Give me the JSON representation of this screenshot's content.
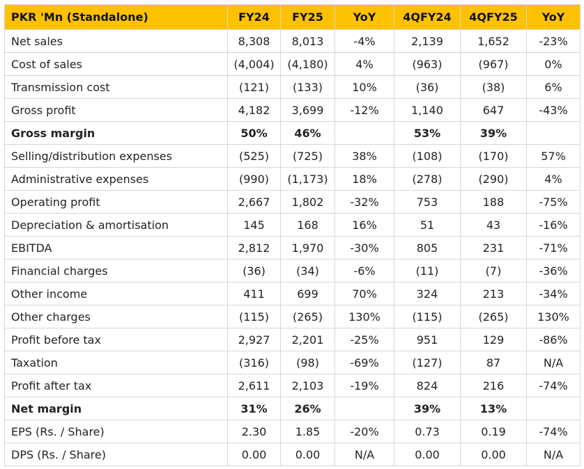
{
  "table": {
    "columns": [
      "PKR 'Mn (Standalone)",
      "FY24",
      "FY25",
      "YoY",
      "4QFY24",
      "4QFY25",
      "YoY"
    ],
    "rows": [
      {
        "label": "Net sales",
        "values": [
          "8,308",
          "8,013",
          "-4%",
          "2,139",
          "1,652",
          "-23%"
        ]
      },
      {
        "label": "Cost of sales",
        "values": [
          "(4,004)",
          "(4,180)",
          "4%",
          "(963)",
          "(967)",
          "0%"
        ]
      },
      {
        "label": "Transmission cost",
        "values": [
          "(121)",
          "(133)",
          "10%",
          "(36)",
          "(38)",
          "6%"
        ]
      },
      {
        "label": "Gross profit",
        "values": [
          "4,182",
          "3,699",
          "-12%",
          "1,140",
          "647",
          "-43%"
        ]
      },
      {
        "label": "Gross margin",
        "values": [
          "50%",
          "46%",
          null,
          "53%",
          "39%",
          null
        ],
        "bold": true
      },
      {
        "label": "Selling/distribution expenses",
        "values": [
          "(525)",
          "(725)",
          "38%",
          "(108)",
          "(170)",
          "57%"
        ]
      },
      {
        "label": "Administrative expenses",
        "values": [
          "(990)",
          "(1,173)",
          "18%",
          "(278)",
          "(290)",
          "4%"
        ]
      },
      {
        "label": "Operating profit",
        "values": [
          "2,667",
          "1,802",
          "-32%",
          "753",
          "188",
          "-75%"
        ]
      },
      {
        "label": "Depreciation & amortisation",
        "values": [
          "145",
          "168",
          "16%",
          "51",
          "43",
          "-16%"
        ]
      },
      {
        "label": "EBITDA",
        "values": [
          "2,812",
          "1,970",
          "-30%",
          "805",
          "231",
          "-71%"
        ]
      },
      {
        "label": "Financial charges",
        "values": [
          "(36)",
          "(34)",
          "-6%",
          "(11)",
          "(7)",
          "-36%"
        ]
      },
      {
        "label": "Other income",
        "values": [
          "411",
          "699",
          "70%",
          "324",
          "213",
          "-34%"
        ]
      },
      {
        "label": "Other charges",
        "values": [
          "(115)",
          "(265)",
          "130%",
          "(115)",
          "(265)",
          "130%"
        ]
      },
      {
        "label": "Profit before tax",
        "values": [
          "2,927",
          "2,201",
          "-25%",
          "951",
          "129",
          "-86%"
        ]
      },
      {
        "label": "Taxation",
        "values": [
          "(316)",
          "(98)",
          "-69%",
          "(127)",
          "87",
          "N/A"
        ]
      },
      {
        "label": "Profit after tax",
        "values": [
          "2,611",
          "2,103",
          "-19%",
          "824",
          "216",
          "-74%"
        ]
      },
      {
        "label": "Net margin",
        "values": [
          "31%",
          "26%",
          null,
          "39%",
          "13%",
          null
        ],
        "bold": true
      },
      {
        "label": "EPS (Rs. / Share)",
        "values": [
          "2.30",
          "1.85",
          "-20%",
          "0.73",
          "0.19",
          "-74%"
        ]
      },
      {
        "label": "DPS (Rs. / Share)",
        "values": [
          "0.00",
          "0.00",
          "N/A",
          "0.00",
          "0.00",
          "N/A"
        ]
      }
    ]
  }
}
